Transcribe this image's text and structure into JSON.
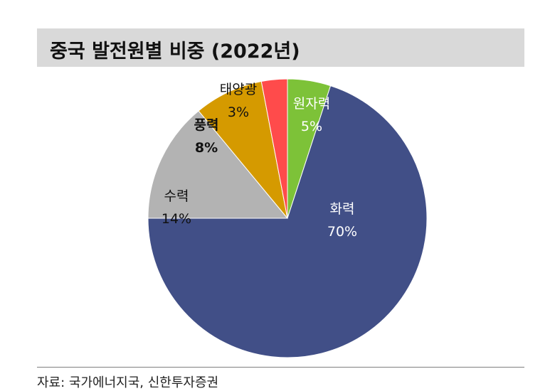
{
  "header": {
    "title": "중국 발전원별 비중 (2022년)"
  },
  "chart_data": {
    "type": "pie",
    "title": "중국 발전원별 비중 (2022년)",
    "start": "12 o'clock, clockwise",
    "categories": [
      "원자력",
      "화력",
      "수력",
      "풍력",
      "태양광"
    ],
    "values": [
      5,
      70,
      14,
      8,
      3
    ],
    "value_labels": [
      "5%",
      "70%",
      "14%",
      "8%",
      "3%"
    ],
    "colors": [
      "#7dc238",
      "#414f87",
      "#b3b3b3",
      "#d59a00",
      "#ff4b4b"
    ],
    "label_colors": [
      "#ffffff",
      "#ffffff",
      "#111111",
      "#111111",
      "#111111"
    ],
    "label_bold": [
      false,
      false,
      false,
      true,
      false
    ]
  },
  "footer": {
    "source": "자료: 국가에너지국, 신한투자증권"
  }
}
